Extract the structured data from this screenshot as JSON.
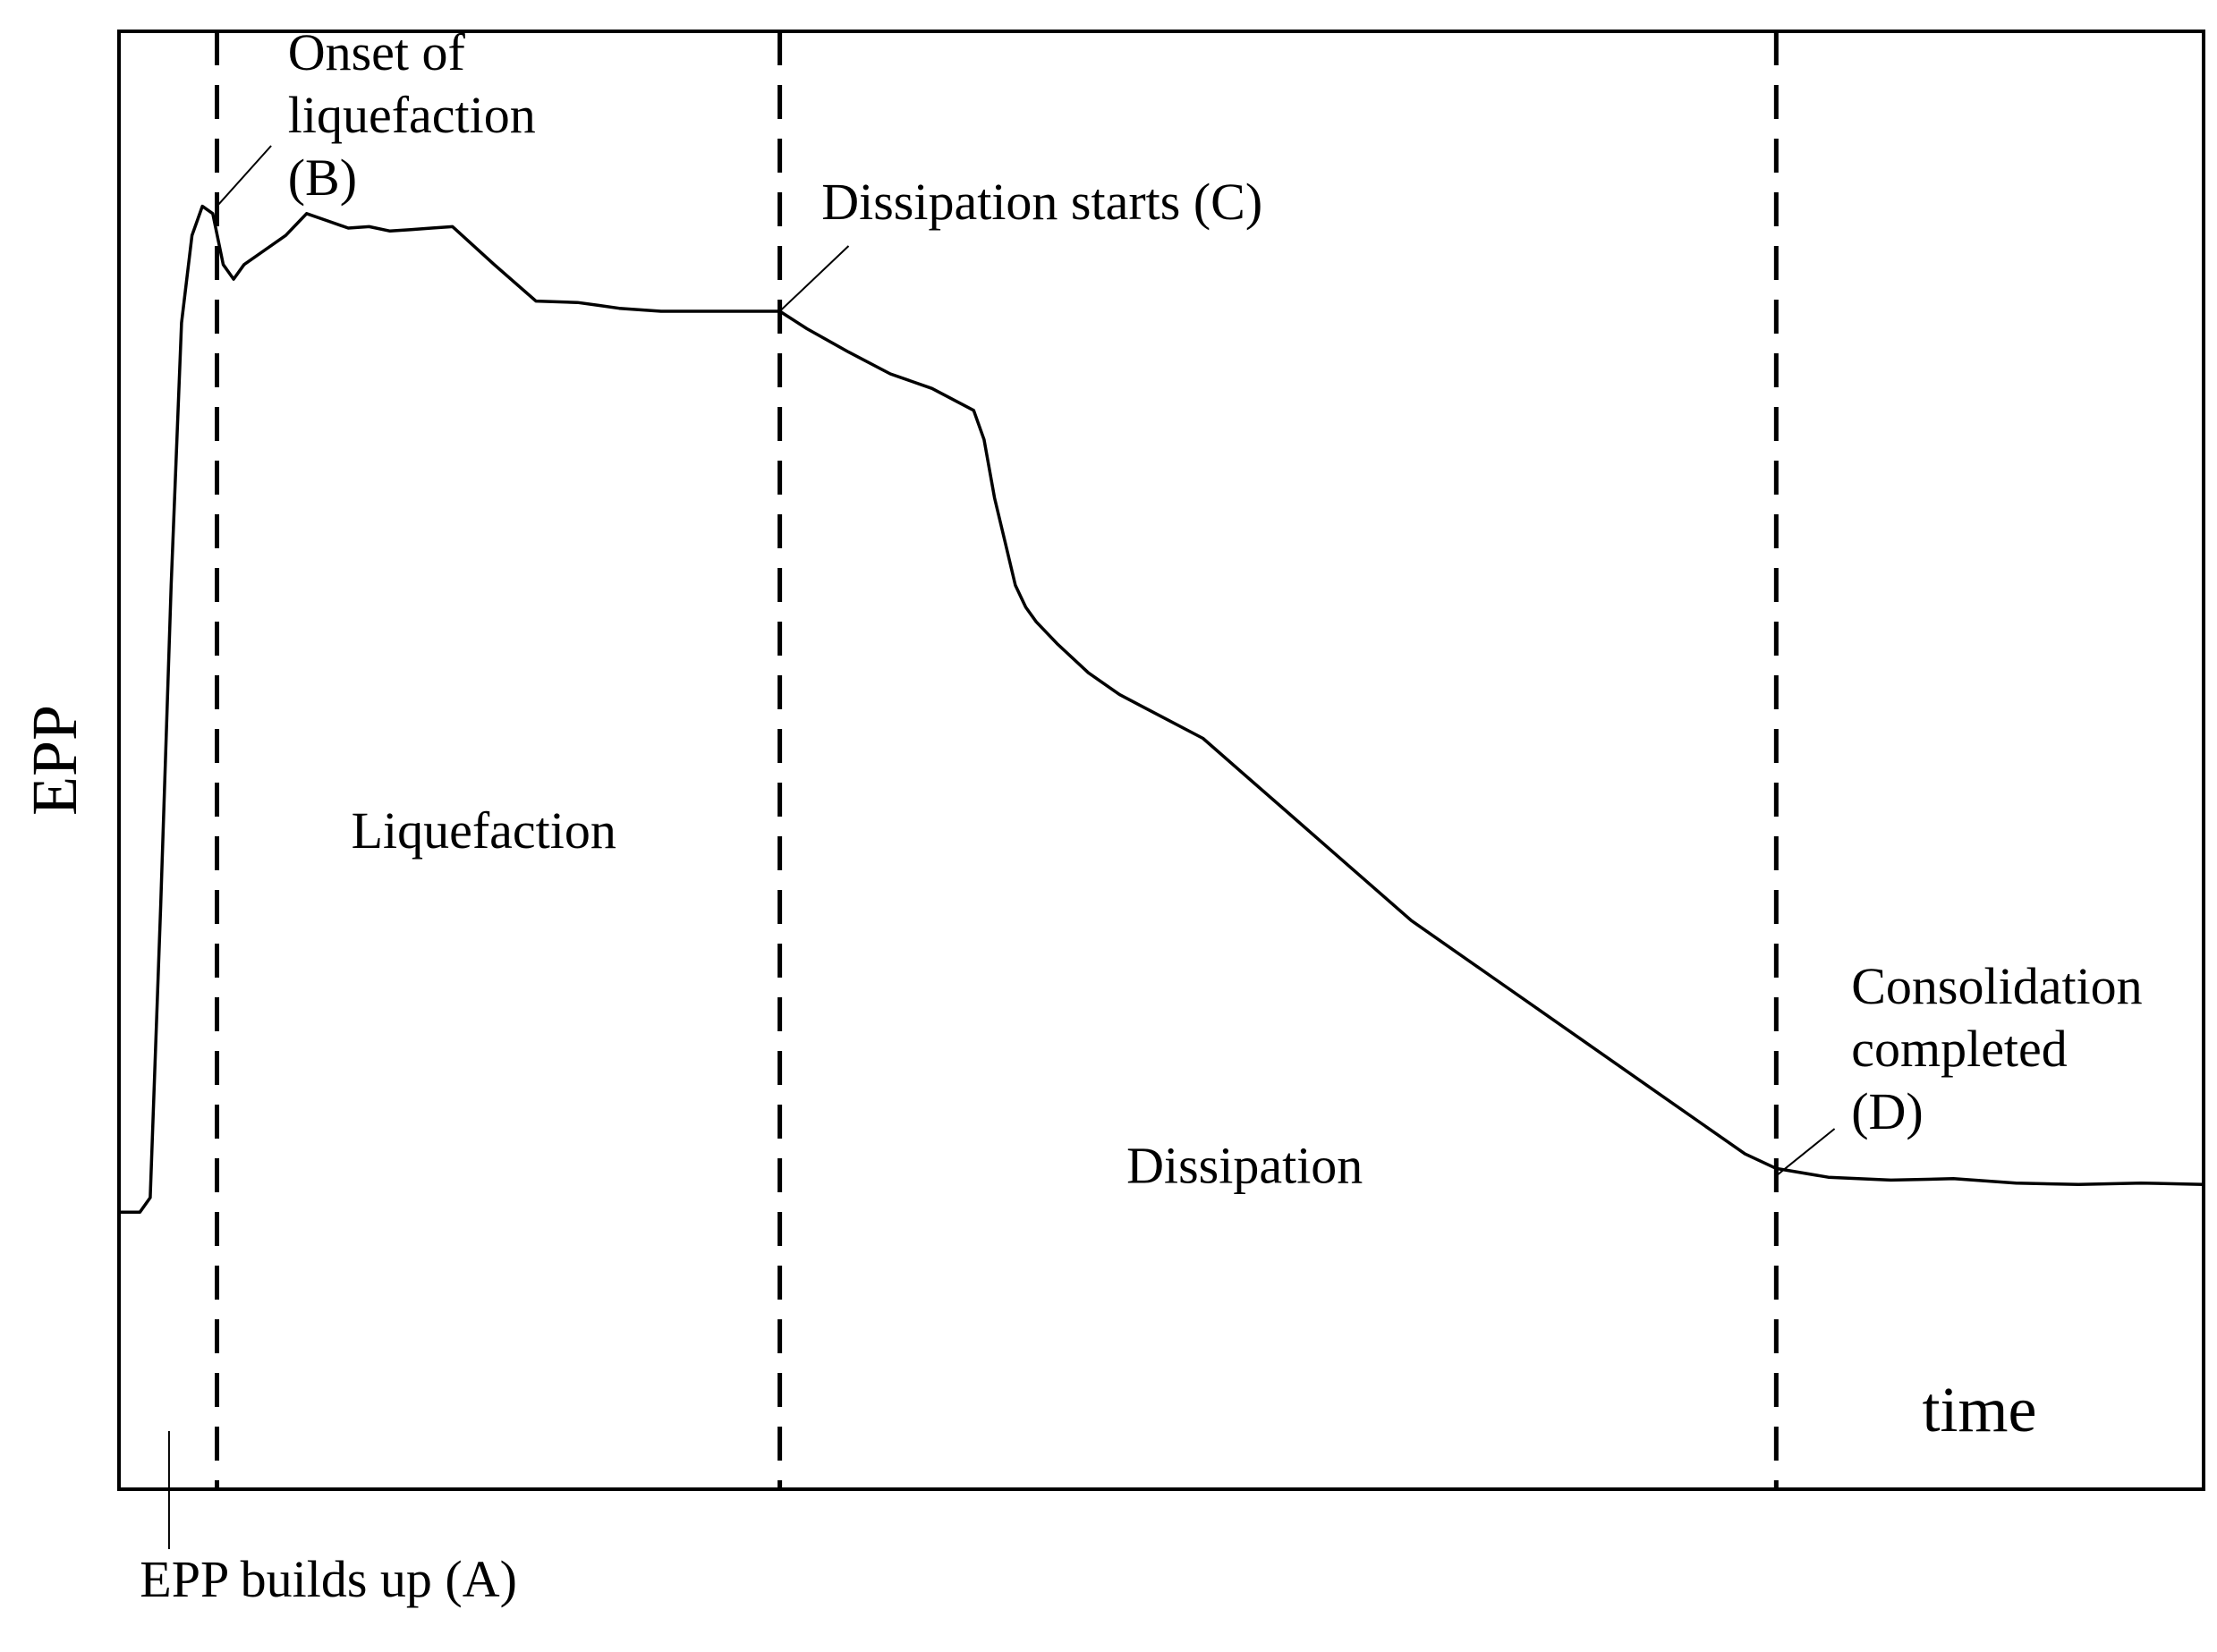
{
  "chart_data": {
    "type": "line",
    "title": "",
    "ylabel": "EPP",
    "xlabel": "time",
    "xlim": [
      0,
      100
    ],
    "ylim": [
      0,
      100
    ],
    "grid": false,
    "legend": "none",
    "phase_boundaries": [
      {
        "id": "B",
        "x": 4.7
      },
      {
        "id": "C",
        "x": 31.7
      },
      {
        "id": "D",
        "x": 79.5
      }
    ],
    "annotations": [
      {
        "id": "A",
        "lines": [
          "EPP builds up (A)"
        ],
        "x": 2.4,
        "y": -7
      },
      {
        "id": "B",
        "lines": [
          "Onset of",
          "liquefaction",
          "(B)"
        ],
        "x": 4.4,
        "y": 87
      },
      {
        "id": "C",
        "lines": [
          "Dissipation starts (C)"
        ],
        "x": 31.7,
        "y": 81
      },
      {
        "id": "D",
        "lines": [
          "Consolidation",
          "completed",
          "(D)"
        ],
        "x": 79.5,
        "y": 20
      }
    ],
    "regions": [
      {
        "label": "Liquefaction",
        "x": 17.5,
        "y": 44
      },
      {
        "label": "Dissipation",
        "x": 54,
        "y": 21
      }
    ],
    "series": [
      {
        "x": [
          0,
          1.0,
          1.5,
          2.0,
          2.5,
          3.0,
          3.5,
          4.0,
          4.5,
          5.0,
          5.5,
          6.0,
          7.0,
          8.0,
          9.0,
          10.0,
          11.0,
          12.0,
          13.0,
          14.0,
          15.0,
          16.0,
          18.0,
          20.0,
          22.0,
          23.0,
          24.0,
          26.0,
          28.0,
          30.0,
          31.7,
          33.0,
          35.0,
          37.0,
          39.0,
          41.0,
          41.5,
          42.0,
          42.5,
          43.0,
          43.5,
          44.0,
          45.0,
          46.5,
          48.0,
          50.0,
          52.0,
          54.0,
          56.0,
          58.0,
          60.0,
          62.0,
          64.0,
          66.0,
          68.0,
          70.0,
          72.0,
          74.0,
          76.0,
          78.0,
          79.5,
          82.0,
          85.0,
          88.0,
          91.0,
          94.0,
          97.0,
          100.0
        ],
        "y": [
          19.0,
          19.0,
          20.0,
          40.0,
          62.0,
          80.0,
          86.0,
          88.0,
          87.5,
          84.0,
          83.0,
          84.0,
          85.0,
          86.0,
          87.5,
          87.0,
          86.5,
          86.6,
          86.3,
          86.4,
          86.5,
          86.6,
          84.0,
          81.5,
          81.4,
          81.2,
          81.0,
          80.8,
          80.8,
          80.8,
          80.8,
          79.6,
          78.0,
          76.5,
          75.5,
          74.0,
          72.0,
          68.0,
          65.0,
          62.0,
          60.5,
          59.5,
          58.0,
          56.0,
          54.5,
          53.0,
          51.5,
          49.0,
          46.5,
          44.0,
          41.5,
          39.0,
          37.0,
          35.0,
          33.0,
          31.0,
          29.0,
          27.0,
          25.0,
          23.0,
          22.0,
          21.4,
          21.2,
          21.3,
          21.0,
          20.9,
          21.0,
          20.9
        ]
      }
    ]
  }
}
